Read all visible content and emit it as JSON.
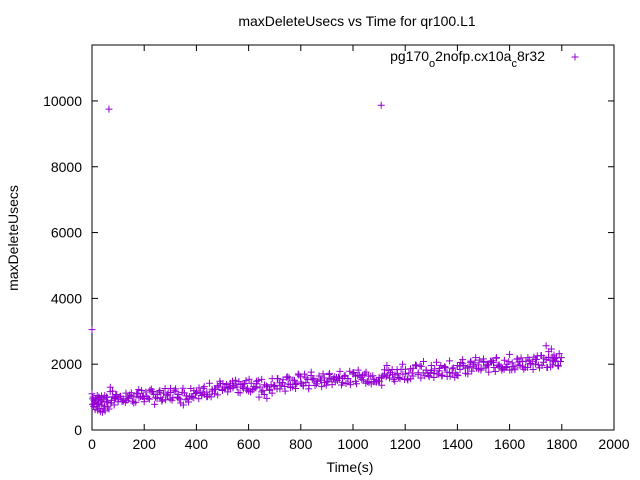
{
  "chart_data": {
    "type": "scatter",
    "title": "maxDeleteUsecs vs Time for qr100.L1",
    "xlabel": "Time(s)",
    "ylabel": "maxDeleteUsecs",
    "xlim": [
      0,
      2000
    ],
    "ylim": [
      0,
      11700
    ],
    "xticks": [
      0,
      200,
      400,
      600,
      800,
      1000,
      1200,
      1400,
      1600,
      1800,
      2000
    ],
    "yticks": [
      0,
      2000,
      4000,
      6000,
      8000,
      10000
    ],
    "grid": false,
    "legend_position": "top-right",
    "series": [
      {
        "name_parts": [
          {
            "text": "pg170",
            "sub": false
          },
          {
            "text": "o",
            "sub": true
          },
          {
            "text": "2nofp.cx10a",
            "sub": false
          },
          {
            "text": "c",
            "sub": true
          },
          {
            "text": "8r32",
            "sub": false
          }
        ],
        "color": "#9400d3",
        "marker": "plus",
        "trend": [
          [
            0,
            950
          ],
          [
            100,
            1000
          ],
          [
            200,
            1050
          ],
          [
            300,
            1100
          ],
          [
            400,
            1150
          ],
          [
            500,
            1250
          ],
          [
            600,
            1350
          ],
          [
            700,
            1400
          ],
          [
            800,
            1500
          ],
          [
            900,
            1550
          ],
          [
            1000,
            1600
          ],
          [
            1100,
            1650
          ],
          [
            1200,
            1750
          ],
          [
            1300,
            1800
          ],
          [
            1400,
            1850
          ],
          [
            1500,
            1950
          ],
          [
            1600,
            2000
          ],
          [
            1700,
            2050
          ],
          [
            1790,
            2100
          ]
        ],
        "points": [
          [
            0,
            3050
          ],
          [
            65,
            9750
          ],
          [
            1108,
            9870
          ],
          [
            0,
            1100
          ],
          [
            2,
            780
          ],
          [
            4,
            1000
          ],
          [
            6,
            720
          ],
          [
            8,
            900
          ],
          [
            10,
            850
          ],
          [
            12,
            620
          ],
          [
            15,
            950
          ],
          [
            18,
            700
          ],
          [
            20,
            1050
          ],
          [
            22,
            600
          ],
          [
            25,
            820
          ],
          [
            28,
            980
          ],
          [
            30,
            650
          ],
          [
            32,
            560
          ],
          [
            35,
            880
          ],
          [
            38,
            760
          ],
          [
            40,
            540
          ],
          [
            42,
            920
          ],
          [
            45,
            640
          ],
          [
            48,
            720
          ],
          [
            50,
            580
          ],
          [
            55,
            860
          ],
          [
            58,
            990
          ],
          [
            60,
            700
          ],
          [
            65,
            640
          ],
          [
            70,
            1300
          ],
          [
            72,
            820
          ],
          [
            75,
            900
          ],
          [
            80,
            1010
          ],
          [
            85,
            760
          ],
          [
            90,
            980
          ],
          [
            95,
            1080
          ],
          [
            100,
            920
          ],
          [
            110,
            1020
          ],
          [
            120,
            880
          ],
          [
            130,
            1120
          ],
          [
            140,
            960
          ],
          [
            150,
            1040
          ],
          [
            160,
            820
          ],
          [
            170,
            1100
          ],
          [
            180,
            980
          ],
          [
            190,
            1200
          ],
          [
            200,
            860
          ],
          [
            210,
            1010
          ],
          [
            220,
            940
          ],
          [
            230,
            1160
          ],
          [
            240,
            780
          ],
          [
            250,
            1080
          ],
          [
            260,
            1200
          ],
          [
            270,
            920
          ],
          [
            280,
            1260
          ],
          [
            290,
            1040
          ],
          [
            300,
            1140
          ],
          [
            310,
            980
          ],
          [
            320,
            1250
          ],
          [
            330,
            1080
          ],
          [
            340,
            820
          ],
          [
            350,
            760
          ],
          [
            360,
            920
          ],
          [
            370,
            850
          ],
          [
            380,
            1020
          ],
          [
            390,
            980
          ],
          [
            400,
            1180
          ],
          [
            410,
            1280
          ],
          [
            420,
            1050
          ],
          [
            430,
            1320
          ],
          [
            440,
            1150
          ],
          [
            450,
            1420
          ],
          [
            460,
            1240
          ],
          [
            470,
            1100
          ],
          [
            480,
            1350
          ],
          [
            490,
            1480
          ],
          [
            500,
            1200
          ],
          [
            510,
            1300
          ],
          [
            520,
            1160
          ],
          [
            530,
            1420
          ],
          [
            540,
            1280
          ],
          [
            550,
            1510
          ],
          [
            560,
            1140
          ],
          [
            570,
            1380
          ],
          [
            580,
            1260
          ],
          [
            590,
            1500
          ],
          [
            600,
            1180
          ],
          [
            610,
            1420
          ],
          [
            620,
            1320
          ],
          [
            630,
            1480
          ],
          [
            640,
            1000
          ],
          [
            650,
            1160
          ],
          [
            660,
            1080
          ],
          [
            670,
            960
          ],
          [
            680,
            1240
          ],
          [
            690,
            1120
          ],
          [
            700,
            1320
          ],
          [
            710,
            1560
          ],
          [
            720,
            1250
          ],
          [
            730,
            1440
          ],
          [
            740,
            1180
          ],
          [
            750,
            1620
          ],
          [
            760,
            1380
          ],
          [
            770,
            1520
          ],
          [
            780,
            1260
          ],
          [
            790,
            1700
          ],
          [
            800,
            1460
          ],
          [
            810,
            1340
          ],
          [
            820,
            1580
          ],
          [
            830,
            1250
          ],
          [
            840,
            1760
          ],
          [
            850,
            1520
          ],
          [
            860,
            1400
          ],
          [
            870,
            1640
          ],
          [
            880,
            1320
          ],
          [
            890,
            1580
          ],
          [
            900,
            1460
          ],
          [
            910,
            1720
          ],
          [
            920,
            1380
          ],
          [
            930,
            1620
          ],
          [
            940,
            1500
          ],
          [
            950,
            1780
          ],
          [
            960,
            1440
          ],
          [
            970,
            1660
          ],
          [
            980,
            1560
          ],
          [
            990,
            1380
          ],
          [
            1000,
            1700
          ],
          [
            1010,
            1480
          ],
          [
            1020,
            1820
          ],
          [
            1030,
            1600
          ],
          [
            1040,
            1520
          ],
          [
            1050,
            1760
          ],
          [
            1060,
            1640
          ],
          [
            1070,
            1400
          ],
          [
            1080,
            1540
          ],
          [
            1090,
            1460
          ],
          [
            1100,
            1600
          ],
          [
            1110,
            1360
          ],
          [
            1120,
            1700
          ],
          [
            1130,
            1960
          ],
          [
            1140,
            1580
          ],
          [
            1150,
            1840
          ],
          [
            1160,
            1480
          ],
          [
            1170,
            1720
          ],
          [
            1180,
            1560
          ],
          [
            1190,
            2000
          ],
          [
            1200,
            1700
          ],
          [
            1210,
            1520
          ],
          [
            1220,
            1860
          ],
          [
            1230,
            1640
          ],
          [
            1240,
            1980
          ],
          [
            1250,
            1740
          ],
          [
            1260,
            1580
          ],
          [
            1270,
            2080
          ],
          [
            1280,
            1820
          ],
          [
            1290,
            1660
          ],
          [
            1300,
            1960
          ],
          [
            1310,
            1720
          ],
          [
            1320,
            2060
          ],
          [
            1330,
            1800
          ],
          [
            1340,
            1640
          ],
          [
            1350,
            1900
          ],
          [
            1360,
            1760
          ],
          [
            1370,
            2100
          ],
          [
            1380,
            1860
          ],
          [
            1390,
            1600
          ],
          [
            1400,
            1960
          ],
          [
            1410,
            1840
          ],
          [
            1420,
            2140
          ],
          [
            1430,
            1880
          ],
          [
            1440,
            1700
          ],
          [
            1450,
            2060
          ],
          [
            1460,
            1920
          ],
          [
            1470,
            2200
          ],
          [
            1480,
            1980
          ],
          [
            1490,
            1820
          ],
          [
            1500,
            2160
          ],
          [
            1510,
            1940
          ],
          [
            1520,
            1760
          ],
          [
            1530,
            2060
          ],
          [
            1540,
            1900
          ],
          [
            1550,
            2200
          ],
          [
            1560,
            1980
          ],
          [
            1570,
            1820
          ],
          [
            1580,
            2120
          ],
          [
            1590,
            2000
          ],
          [
            1600,
            2300
          ],
          [
            1610,
            2040
          ],
          [
            1620,
            1880
          ],
          [
            1630,
            2160
          ],
          [
            1640,
            1960
          ],
          [
            1650,
            2080
          ],
          [
            1660,
            1900
          ],
          [
            1670,
            2200
          ],
          [
            1680,
            2020
          ],
          [
            1690,
            1840
          ],
          [
            1700,
            2140
          ],
          [
            1710,
            1980
          ],
          [
            1720,
            2260
          ],
          [
            1730,
            2060
          ],
          [
            1740,
            2560
          ],
          [
            1745,
            1900
          ],
          [
            1750,
            2380
          ],
          [
            1755,
            2120
          ],
          [
            1760,
            2460
          ],
          [
            1765,
            1980
          ],
          [
            1770,
            2280
          ],
          [
            1775,
            2100
          ],
          [
            1780,
            2200
          ],
          [
            1785,
            1960
          ],
          [
            1790,
            2320
          ],
          [
            1795,
            2080
          ],
          [
            1798,
            2200
          ]
        ]
      }
    ]
  }
}
